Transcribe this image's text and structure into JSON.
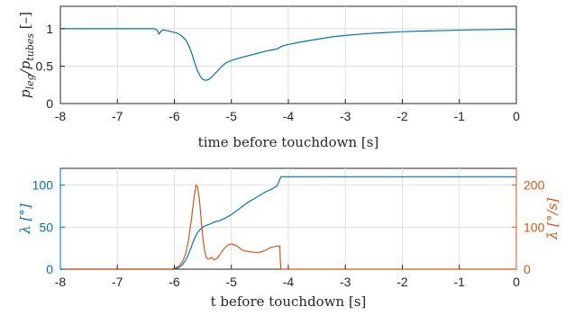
{
  "colors": {
    "blue": "#0072BD",
    "orange": "#D95319",
    "axis": "#262626",
    "grid": "#dfdfdf"
  },
  "chart_data": [
    {
      "type": "line",
      "xlabel": "time before touchdown [s]",
      "ylabel": "p_leg / p_tubes [–]",
      "ylabel_main": "p",
      "ylabel_sub_num": "leg",
      "ylabel_den": "p",
      "ylabel_sub_den": "tubes",
      "ylabel_unit": "[–]",
      "xlim": [
        -8,
        0
      ],
      "ylim": [
        0,
        1.3
      ],
      "xticks": [
        "-8",
        "-7",
        "-6",
        "-5",
        "-4",
        "-3",
        "-2",
        "-1",
        "0"
      ],
      "yticks": [
        "0",
        "0.5",
        "1"
      ],
      "grid": true,
      "series": [
        {
          "color": "blue",
          "x": [
            -8,
            -6.35,
            -6.3,
            -6.27,
            -6.24,
            -6.2,
            -6.1,
            -6.0,
            -5.95,
            -5.9,
            -5.85,
            -5.8,
            -5.75,
            -5.7,
            -5.65,
            -5.6,
            -5.55,
            -5.5,
            -5.45,
            -5.4,
            -5.35,
            -5.3,
            -5.25,
            -5.2,
            -5.15,
            -5.1,
            -5.05,
            -5.0,
            -4.9,
            -4.8,
            -4.7,
            -4.6,
            -4.5,
            -4.4,
            -4.3,
            -4.2,
            -4.15,
            -4.1,
            -4.0,
            -3.8,
            -3.5,
            -3.2,
            -3.0,
            -2.7,
            -2.4,
            -2.0,
            -1.6,
            -1.2,
            -0.8,
            -0.4,
            -0.05,
            0
          ],
          "y": [
            1.0,
            1.0,
            0.98,
            0.93,
            0.96,
            0.985,
            0.97,
            0.95,
            0.94,
            0.92,
            0.89,
            0.85,
            0.78,
            0.68,
            0.56,
            0.45,
            0.37,
            0.32,
            0.31,
            0.32,
            0.35,
            0.39,
            0.43,
            0.47,
            0.51,
            0.54,
            0.56,
            0.575,
            0.6,
            0.62,
            0.64,
            0.66,
            0.68,
            0.7,
            0.715,
            0.73,
            0.75,
            0.77,
            0.79,
            0.82,
            0.86,
            0.895,
            0.91,
            0.93,
            0.945,
            0.96,
            0.97,
            0.978,
            0.985,
            0.99,
            0.995,
            0.99
          ]
        }
      ]
    },
    {
      "type": "line",
      "xlabel": "t before touchdown [s]",
      "ylabel_left": "λ [°]",
      "ylabel_right": "λ̇ [°/s]",
      "xlim": [
        -8,
        0
      ],
      "ylim_left": [
        0,
        120
      ],
      "ylim_right": [
        0,
        240
      ],
      "xticks": [
        "-8",
        "-7",
        "-6",
        "-5",
        "-4",
        "-3",
        "-2",
        "-1",
        "0"
      ],
      "yticks_left": [
        "0",
        "50",
        "100"
      ],
      "yticks_right": [
        "0",
        "100",
        "200"
      ],
      "grid": true,
      "series": [
        {
          "axis": "left",
          "color": "blue",
          "x": [
            -8,
            -6.0,
            -5.95,
            -5.9,
            -5.85,
            -5.8,
            -5.75,
            -5.7,
            -5.65,
            -5.6,
            -5.55,
            -5.5,
            -5.45,
            -5.4,
            -5.3,
            -5.2,
            -5.1,
            -5.0,
            -4.9,
            -4.8,
            -4.7,
            -4.6,
            -4.5,
            -4.4,
            -4.3,
            -4.2,
            -4.13,
            -4.0,
            -3.0,
            -2.0,
            -1.0,
            0
          ],
          "y": [
            0,
            0,
            1,
            3,
            6,
            11,
            18,
            27,
            36,
            43,
            47,
            50,
            52,
            53,
            56,
            58,
            61,
            65,
            70,
            75,
            80,
            84,
            88,
            92,
            95,
            99,
            110,
            110,
            110,
            110,
            110,
            110
          ]
        },
        {
          "axis": "right",
          "color": "orange",
          "x": [
            -8,
            -6.05,
            -6.0,
            -5.95,
            -5.9,
            -5.85,
            -5.8,
            -5.75,
            -5.7,
            -5.65,
            -5.62,
            -5.59,
            -5.56,
            -5.53,
            -5.5,
            -5.47,
            -5.44,
            -5.41,
            -5.38,
            -5.35,
            -5.3,
            -5.25,
            -5.2,
            -5.15,
            -5.1,
            -5.05,
            -5.0,
            -4.95,
            -4.9,
            -4.85,
            -4.8,
            -4.75,
            -4.7,
            -4.6,
            -4.5,
            -4.4,
            -4.3,
            -4.2,
            -4.15,
            -4.14,
            -4.13,
            -4.0,
            0
          ],
          "y": [
            0,
            0,
            2,
            5,
            10,
            20,
            38,
            70,
            120,
            175,
            200,
            195,
            165,
            120,
            75,
            45,
            28,
            24,
            25,
            28,
            22,
            26,
            35,
            45,
            53,
            58,
            60,
            58,
            55,
            50,
            45,
            43,
            42,
            40,
            40,
            45,
            52,
            55,
            55,
            20,
            0,
            0,
            0
          ]
        }
      ]
    }
  ]
}
